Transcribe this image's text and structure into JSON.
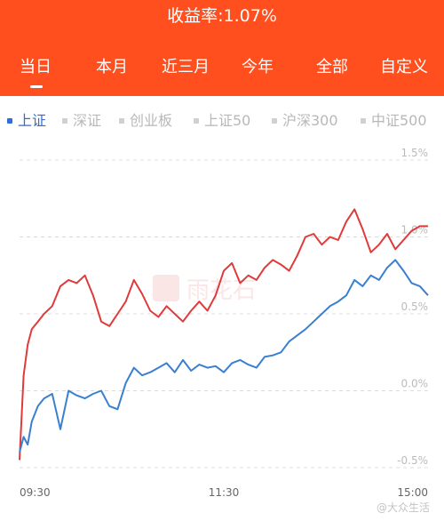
{
  "header": {
    "title": "收益率:1.07%",
    "bg_color": "#ff4f1f"
  },
  "period_tabs": [
    {
      "label": "当日",
      "active": true
    },
    {
      "label": "本月"
    },
    {
      "label": "近三月"
    },
    {
      "label": "今年"
    },
    {
      "label": "全部"
    },
    {
      "label": "自定义"
    }
  ],
  "index_filters": [
    {
      "label": "上证",
      "active": true
    },
    {
      "label": "深证"
    },
    {
      "label": "创业板"
    },
    {
      "label": "上证50"
    },
    {
      "label": "沪深300"
    },
    {
      "label": "中证500"
    }
  ],
  "chart_data": {
    "type": "line",
    "x_ticks": [
      "09:30",
      "11:30",
      "15:00"
    ],
    "y_ticks": [
      "1.5%",
      "1.0%",
      "0.5%",
      "0.0%",
      "-0.5%"
    ],
    "ylim": [
      -0.5,
      1.5
    ],
    "series": [
      {
        "color": "#e03a3a",
        "x": [
          0,
          0.01,
          0.02,
          0.03,
          0.045,
          0.06,
          0.08,
          0.1,
          0.12,
          0.14,
          0.16,
          0.18,
          0.2,
          0.22,
          0.24,
          0.26,
          0.28,
          0.3,
          0.32,
          0.34,
          0.36,
          0.38,
          0.4,
          0.42,
          0.44,
          0.46,
          0.48,
          0.5,
          0.52,
          0.54,
          0.56,
          0.58,
          0.6,
          0.62,
          0.64,
          0.66,
          0.68,
          0.7,
          0.72,
          0.74,
          0.76,
          0.78,
          0.8,
          0.82,
          0.84,
          0.86,
          0.88,
          0.9,
          0.92,
          0.94,
          0.96,
          0.98,
          1.0
        ],
        "values": [
          -0.45,
          0.1,
          0.3,
          0.4,
          0.45,
          0.5,
          0.55,
          0.68,
          0.72,
          0.7,
          0.75,
          0.62,
          0.45,
          0.42,
          0.5,
          0.58,
          0.72,
          0.63,
          0.52,
          0.48,
          0.55,
          0.5,
          0.45,
          0.52,
          0.58,
          0.52,
          0.62,
          0.78,
          0.83,
          0.7,
          0.75,
          0.72,
          0.8,
          0.85,
          0.82,
          0.78,
          0.88,
          1.0,
          1.02,
          0.95,
          1.0,
          0.98,
          1.1,
          1.18,
          1.05,
          0.9,
          0.95,
          1.02,
          0.92,
          0.98,
          1.04,
          1.07,
          1.07
        ]
      },
      {
        "color": "#3b7fd0",
        "x": [
          0,
          0.01,
          0.02,
          0.03,
          0.045,
          0.06,
          0.08,
          0.1,
          0.12,
          0.14,
          0.16,
          0.18,
          0.2,
          0.22,
          0.24,
          0.26,
          0.28,
          0.3,
          0.32,
          0.34,
          0.36,
          0.38,
          0.4,
          0.42,
          0.44,
          0.46,
          0.48,
          0.5,
          0.52,
          0.54,
          0.56,
          0.58,
          0.6,
          0.62,
          0.64,
          0.66,
          0.68,
          0.7,
          0.72,
          0.74,
          0.76,
          0.78,
          0.8,
          0.82,
          0.84,
          0.86,
          0.88,
          0.9,
          0.92,
          0.94,
          0.96,
          0.98,
          1.0
        ],
        "values": [
          -0.4,
          -0.3,
          -0.35,
          -0.2,
          -0.1,
          -0.05,
          -0.02,
          -0.25,
          0.0,
          -0.03,
          -0.05,
          -0.02,
          0.0,
          -0.1,
          -0.12,
          0.05,
          0.15,
          0.1,
          0.12,
          0.15,
          0.18,
          0.12,
          0.2,
          0.13,
          0.17,
          0.15,
          0.16,
          0.12,
          0.18,
          0.2,
          0.17,
          0.15,
          0.22,
          0.23,
          0.25,
          0.32,
          0.36,
          0.4,
          0.45,
          0.5,
          0.55,
          0.58,
          0.62,
          0.72,
          0.68,
          0.75,
          0.72,
          0.8,
          0.85,
          0.78,
          0.7,
          0.68,
          0.62
        ]
      }
    ]
  },
  "watermark_text": "雨花石",
  "credit": "@大众生活"
}
